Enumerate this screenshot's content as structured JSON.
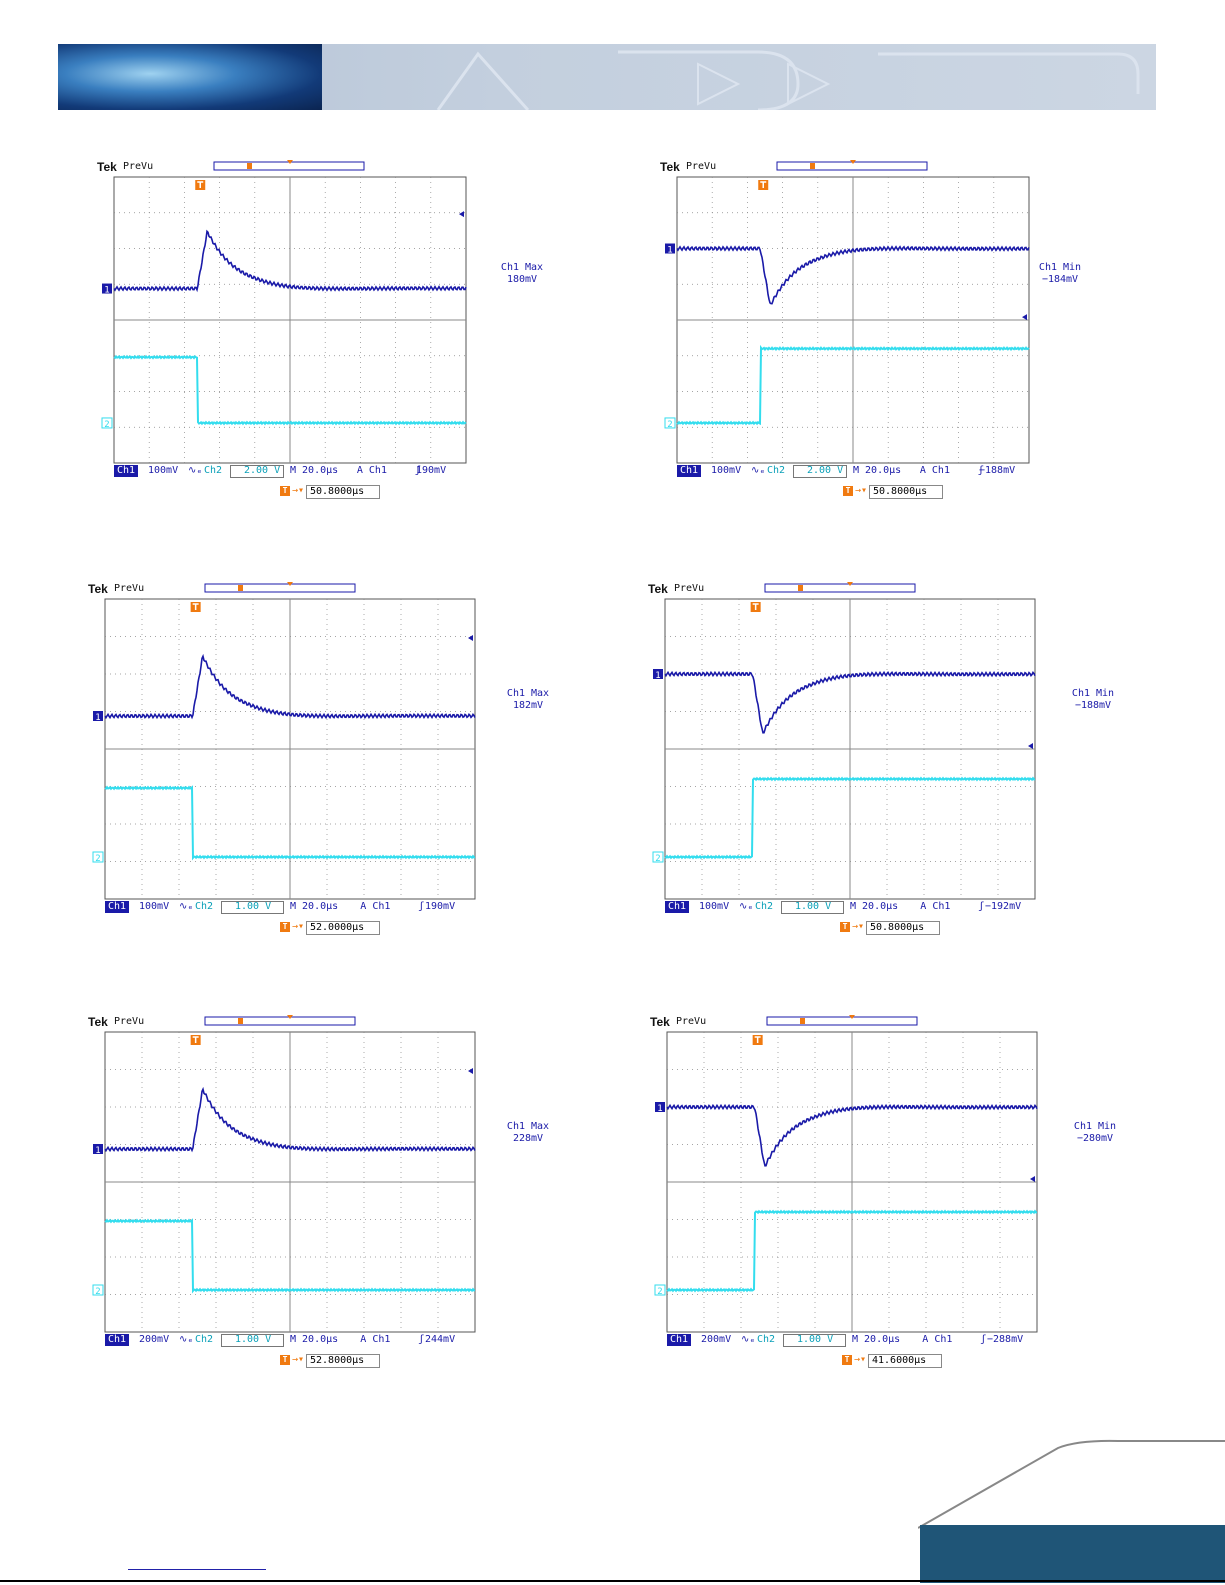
{
  "scopes": [
    {
      "id": "scope-1",
      "tek": "Tek",
      "prevu": "PreVu",
      "ch1_marker": "1",
      "ch2_marker": "2",
      "measure_label": "Ch1 Max",
      "measure_value": "180mV",
      "status": {
        "ch1": "Ch1",
        "ch1_scale": "100mV",
        "ch1_coupling": "∿ₑ",
        "ch2": "Ch2",
        "ch2_scale": "2.00 V",
        "timebase": "M 20.0µs",
        "trigger_source": "A  Ch1",
        "trigger_slope": "ʃ",
        "trigger_level": "190mV"
      },
      "trigger_offset": "50.8000µs",
      "event": "overshoot"
    },
    {
      "id": "scope-2",
      "tek": "Tek",
      "prevu": "PreVu",
      "ch1_marker": "1",
      "ch2_marker": "2",
      "measure_label": "Ch1 Min",
      "measure_value": "−184mV",
      "status": {
        "ch1": "Ch1",
        "ch1_scale": "100mV",
        "ch1_coupling": "∿ₑ",
        "ch2": "Ch2",
        "ch2_scale": "2.00 V",
        "timebase": "M 20.0µs",
        "trigger_source": "A  Ch1",
        "trigger_slope": "ʃ",
        "trigger_level": "−188mV"
      },
      "trigger_offset": "50.8000µs",
      "event": "undershoot"
    },
    {
      "id": "scope-3",
      "tek": "Tek",
      "prevu": "PreVu",
      "ch1_marker": "1",
      "ch2_marker": "2",
      "measure_label": "Ch1 Max",
      "measure_value": "182mV",
      "status": {
        "ch1": "Ch1",
        "ch1_scale": "100mV",
        "ch1_coupling": "∿ₑ",
        "ch2": "Ch2",
        "ch2_scale": "1.00 V",
        "timebase": "M 20.0µs",
        "trigger_source": "A  Ch1",
        "trigger_slope": "ʃ",
        "trigger_level": "190mV"
      },
      "trigger_offset": "52.0000µs",
      "event": "overshoot"
    },
    {
      "id": "scope-4",
      "tek": "Tek",
      "prevu": "PreVu",
      "ch1_marker": "1",
      "ch2_marker": "2",
      "measure_label": "Ch1 Min",
      "measure_value": "−188mV",
      "status": {
        "ch1": "Ch1",
        "ch1_scale": "100mV",
        "ch1_coupling": "∿ₑ",
        "ch2": "Ch2",
        "ch2_scale": "1.00 V",
        "timebase": "M 20.0µs",
        "trigger_source": "A  Ch1",
        "trigger_slope": "ʃ",
        "trigger_level": "−192mV"
      },
      "trigger_offset": "50.8000µs",
      "event": "undershoot"
    },
    {
      "id": "scope-5",
      "tek": "Tek",
      "prevu": "PreVu",
      "ch1_marker": "1",
      "ch2_marker": "2",
      "measure_label": "Ch1 Max",
      "measure_value": "228mV",
      "status": {
        "ch1": "Ch1",
        "ch1_scale": "200mV",
        "ch1_coupling": "∿ₑ",
        "ch2": "Ch2",
        "ch2_scale": "1.00 V",
        "timebase": "M 20.0µs",
        "trigger_source": "A  Ch1",
        "trigger_slope": "ʃ",
        "trigger_level": "244mV"
      },
      "trigger_offset": "52.8000µs",
      "event": "overshoot"
    },
    {
      "id": "scope-6",
      "tek": "Tek",
      "prevu": "PreVu",
      "ch1_marker": "1",
      "ch2_marker": "2",
      "measure_label": "Ch1 Min",
      "measure_value": "−280mV",
      "status": {
        "ch1": "Ch1",
        "ch1_scale": "200mV",
        "ch1_coupling": "∿ₑ",
        "ch2": "Ch2",
        "ch2_scale": "1.00 V",
        "timebase": "M 20.0µs",
        "trigger_source": "A  Ch1",
        "trigger_slope": "ʃ",
        "trigger_level": "−288mV"
      },
      "trigger_offset": "41.6000µs",
      "event": "undershoot"
    }
  ],
  "colors": {
    "ch1": "#1a1aa8",
    "ch2": "#33ddee",
    "trigger": "#f07a10",
    "grid": "#555555"
  }
}
